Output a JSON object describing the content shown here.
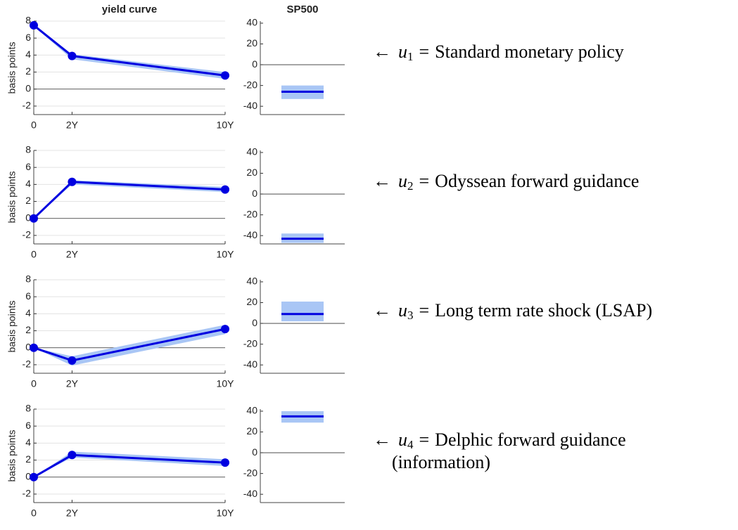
{
  "chart_data": [
    {
      "type": "line",
      "title": "yield curve",
      "ylabel": "basis points",
      "x": [
        0,
        2,
        10
      ],
      "xlim": [
        0,
        10
      ],
      "xticks": [
        0,
        {
          "value": 2,
          "label": "2Y"
        },
        {
          "value": 10,
          "label": "10Y"
        }
      ],
      "values": [
        7.5,
        3.9,
        1.6
      ],
      "lower": [
        7.4,
        3.5,
        1.2
      ],
      "upper": [
        7.6,
        4.1,
        2.0
      ],
      "color": "#0000e0",
      "band_color": "#a9c6f5",
      "ylim": [
        -3,
        8
      ],
      "yticks": [
        -2,
        0,
        2,
        4,
        6,
        8
      ],
      "grid": true,
      "zero_line": true
    },
    {
      "type": "interval",
      "title": "SP500",
      "values": [
        -26
      ],
      "lower": [
        -33
      ],
      "upper": [
        -20
      ],
      "color": "#0000e0",
      "band_color": "#a9c6f5",
      "ylim": [
        -48,
        42
      ],
      "yticks": [
        -40,
        -20,
        0,
        20,
        40
      ],
      "grid": false,
      "zero_line": true
    },
    {
      "type": "line",
      "ylabel": "basis points",
      "x": [
        0,
        2,
        10
      ],
      "xlim": [
        0,
        10
      ],
      "xticks": [
        0,
        {
          "value": 2,
          "label": "2Y"
        },
        {
          "value": 10,
          "label": "10Y"
        }
      ],
      "values": [
        0,
        4.3,
        3.4
      ],
      "lower": [
        0,
        4.0,
        3.1
      ],
      "upper": [
        0,
        4.5,
        3.7
      ],
      "color": "#0000e0",
      "band_color": "#a9c6f5",
      "ylim": [
        -3,
        8
      ],
      "yticks": [
        -2,
        0,
        2,
        4,
        6,
        8
      ],
      "grid": true,
      "zero_line": true
    },
    {
      "type": "interval",
      "values": [
        -43
      ],
      "lower": [
        -47
      ],
      "upper": [
        -38
      ],
      "color": "#0000e0",
      "band_color": "#a9c6f5",
      "ylim": [
        -48,
        42
      ],
      "yticks": [
        -40,
        -20,
        0,
        20,
        40
      ],
      "grid": false,
      "zero_line": true
    },
    {
      "type": "line",
      "ylabel": "basis points",
      "x": [
        0,
        2,
        10
      ],
      "xlim": [
        0,
        10
      ],
      "xticks": [
        0,
        {
          "value": 2,
          "label": "2Y"
        },
        {
          "value": 10,
          "label": "10Y"
        }
      ],
      "values": [
        0,
        -1.5,
        2.2
      ],
      "lower": [
        0,
        -2.1,
        1.6
      ],
      "upper": [
        0,
        -1.0,
        2.7
      ],
      "color": "#0000e0",
      "band_color": "#a9c6f5",
      "ylim": [
        -3,
        8
      ],
      "yticks": [
        -2,
        0,
        2,
        4,
        6,
        8
      ],
      "grid": true,
      "zero_line": true
    },
    {
      "type": "interval",
      "values": [
        9
      ],
      "lower": [
        2
      ],
      "upper": [
        21
      ],
      "color": "#0000e0",
      "band_color": "#a9c6f5",
      "ylim": [
        -48,
        42
      ],
      "yticks": [
        -40,
        -20,
        0,
        20,
        40
      ],
      "grid": false,
      "zero_line": true
    },
    {
      "type": "line",
      "ylabel": "basis points",
      "x": [
        0,
        2,
        10
      ],
      "xlim": [
        0,
        10
      ],
      "xticks": [
        0,
        {
          "value": 2,
          "label": "2Y"
        },
        {
          "value": 10,
          "label": "10Y"
        }
      ],
      "values": [
        0,
        2.6,
        1.7
      ],
      "lower": [
        0,
        2.3,
        1.3
      ],
      "upper": [
        0,
        3.0,
        2.1
      ],
      "color": "#0000e0",
      "band_color": "#a9c6f5",
      "ylim": [
        -3,
        8
      ],
      "yticks": [
        -2,
        0,
        2,
        4,
        6,
        8
      ],
      "grid": true,
      "zero_line": true
    },
    {
      "type": "interval",
      "values": [
        35
      ],
      "lower": [
        29
      ],
      "upper": [
        40
      ],
      "color": "#0000e0",
      "band_color": "#a9c6f5",
      "ylim": [
        -48,
        42
      ],
      "yticks": [
        -40,
        -20,
        0,
        20,
        40
      ],
      "grid": false,
      "zero_line": true
    }
  ],
  "annotations": [
    {
      "arrow": "←",
      "symbol": "u",
      "subscript": "1",
      "relation": "=",
      "text": [
        "Standard monetary policy"
      ]
    },
    {
      "arrow": "←",
      "symbol": "u",
      "subscript": "2",
      "relation": "=",
      "text": [
        "Odyssean forward guidance"
      ]
    },
    {
      "arrow": "←",
      "symbol": "u",
      "subscript": "3",
      "relation": "=",
      "text": [
        "Long term rate shock (LSAP)"
      ]
    },
    {
      "arrow": "←",
      "symbol": "u",
      "subscript": "4",
      "relation": "=",
      "text": [
        "Delphic forward guidance",
        "(information)"
      ]
    }
  ]
}
